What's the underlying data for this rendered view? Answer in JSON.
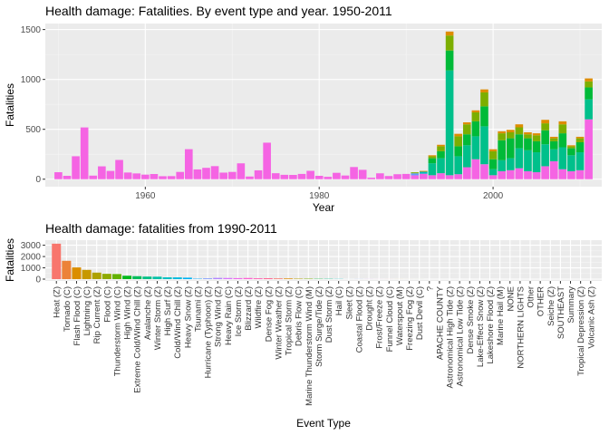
{
  "chart_data": [
    {
      "type": "bar",
      "stacked": true,
      "title": "Health damage: Fatalities. By event type and year. 1950-2011",
      "xlabel": "Year",
      "ylabel": "Fatalities",
      "xlim": [
        1948.5,
        2012.5
      ],
      "ylim": [
        -75,
        1560
      ],
      "x_ticks": [
        1960,
        1980,
        2000
      ],
      "y_ticks": [
        0,
        500,
        1000,
        1500
      ],
      "grid": true,
      "legend": "none",
      "series_colors": [
        "#F8766D",
        "#DE8C00",
        "#B79F00",
        "#7CAE00",
        "#00BA38",
        "#00C08B",
        "#00BFC4",
        "#00B4F0",
        "#619CFF",
        "#C77CFF",
        "#F564E3"
      ],
      "years": [
        1950,
        1951,
        1952,
        1953,
        1954,
        1955,
        1956,
        1957,
        1958,
        1959,
        1960,
        1961,
        1962,
        1963,
        1964,
        1965,
        1966,
        1967,
        1968,
        1969,
        1970,
        1971,
        1972,
        1973,
        1974,
        1975,
        1976,
        1977,
        1978,
        1979,
        1980,
        1981,
        1982,
        1983,
        1984,
        1985,
        1986,
        1987,
        1988,
        1989,
        1990,
        1991,
        1992,
        1993,
        1994,
        1995,
        1996,
        1997,
        1998,
        1999,
        2000,
        2001,
        2002,
        2003,
        2004,
        2005,
        2006,
        2007,
        2008,
        2009,
        2010,
        2011
      ],
      "stacks": [
        [
          [
            70,
            "#F564E3"
          ]
        ],
        [
          [
            34,
            "#F564E3"
          ]
        ],
        [
          [
            230,
            "#F564E3"
          ]
        ],
        [
          [
            519,
            "#F564E3"
          ]
        ],
        [
          [
            36,
            "#F564E3"
          ]
        ],
        [
          [
            129,
            "#F564E3"
          ]
        ],
        [
          [
            83,
            "#F564E3"
          ]
        ],
        [
          [
            193,
            "#F564E3"
          ]
        ],
        [
          [
            67,
            "#F564E3"
          ]
        ],
        [
          [
            58,
            "#F564E3"
          ]
        ],
        [
          [
            46,
            "#F564E3"
          ]
        ],
        [
          [
            52,
            "#F564E3"
          ]
        ],
        [
          [
            30,
            "#F564E3"
          ]
        ],
        [
          [
            31,
            "#F564E3"
          ]
        ],
        [
          [
            73,
            "#F564E3"
          ]
        ],
        [
          [
            301,
            "#F564E3"
          ]
        ],
        [
          [
            98,
            "#F564E3"
          ]
        ],
        [
          [
            114,
            "#F564E3"
          ]
        ],
        [
          [
            131,
            "#F564E3"
          ]
        ],
        [
          [
            66,
            "#F564E3"
          ]
        ],
        [
          [
            73,
            "#F564E3"
          ]
        ],
        [
          [
            159,
            "#F564E3"
          ]
        ],
        [
          [
            27,
            "#F564E3"
          ]
        ],
        [
          [
            89,
            "#F564E3"
          ]
        ],
        [
          [
            366,
            "#F564E3"
          ]
        ],
        [
          [
            60,
            "#F564E3"
          ]
        ],
        [
          [
            44,
            "#F564E3"
          ]
        ],
        [
          [
            43,
            "#F564E3"
          ]
        ],
        [
          [
            53,
            "#F564E3"
          ]
        ],
        [
          [
            84,
            "#F564E3"
          ]
        ],
        [
          [
            34,
            "#F564E3"
          ]
        ],
        [
          [
            24,
            "#F564E3"
          ]
        ],
        [
          [
            64,
            "#F564E3"
          ]
        ],
        [
          [
            37,
            "#F564E3"
          ]
        ],
        [
          [
            122,
            "#F564E3"
          ]
        ],
        [
          [
            94,
            "#F564E3"
          ]
        ],
        [
          [
            15,
            "#F564E3"
          ]
        ],
        [
          [
            59,
            "#F564E3"
          ]
        ],
        [
          [
            32,
            "#F564E3"
          ]
        ],
        [
          [
            50,
            "#F564E3"
          ]
        ],
        [
          [
            53,
            "#F564E3"
          ]
        ],
        [
          [
            39,
            "#F564E3"
          ],
          [
            20,
            "#619CFF"
          ],
          [
            10,
            "#7CAE00"
          ]
        ],
        [
          [
            55,
            "#F564E3"
          ],
          [
            20,
            "#00BFC4"
          ],
          [
            8,
            "#DE8C00"
          ]
        ],
        [
          [
            40,
            "#F564E3"
          ],
          [
            120,
            "#00C08B"
          ],
          [
            50,
            "#00BA38"
          ],
          [
            20,
            "#7CAE00"
          ],
          [
            10,
            "#DE8C00"
          ]
        ],
        [
          [
            60,
            "#F564E3"
          ],
          [
            150,
            "#00C08B"
          ],
          [
            70,
            "#00BA38"
          ],
          [
            50,
            "#7CAE00"
          ],
          [
            15,
            "#DE8C00"
          ]
        ],
        [
          [
            40,
            "#F564E3"
          ],
          [
            1050,
            "#00C08B"
          ],
          [
            200,
            "#00BA38"
          ],
          [
            150,
            "#7CAE00"
          ],
          [
            40,
            "#DE8C00"
          ]
        ],
        [
          [
            50,
            "#F564E3"
          ],
          [
            180,
            "#00C08B"
          ],
          [
            100,
            "#00BA38"
          ],
          [
            100,
            "#7CAE00"
          ],
          [
            25,
            "#DE8C00"
          ]
        ],
        [
          [
            120,
            "#F564E3"
          ],
          [
            220,
            "#00C08B"
          ],
          [
            110,
            "#00BA38"
          ],
          [
            100,
            "#7CAE00"
          ],
          [
            20,
            "#DE8C00"
          ]
        ],
        [
          [
            200,
            "#F564E3"
          ],
          [
            230,
            "#00C08B"
          ],
          [
            150,
            "#00BA38"
          ],
          [
            90,
            "#7CAE00"
          ],
          [
            20,
            "#DE8C00"
          ]
        ],
        [
          [
            150,
            "#F564E3"
          ],
          [
            380,
            "#00C08B"
          ],
          [
            200,
            "#00BA38"
          ],
          [
            140,
            "#7CAE00"
          ],
          [
            30,
            "#DE8C00"
          ]
        ],
        [
          [
            40,
            "#F564E3"
          ],
          [
            60,
            "#00C08B"
          ],
          [
            100,
            "#00BA38"
          ],
          [
            80,
            "#7CAE00"
          ],
          [
            20,
            "#DE8C00"
          ]
        ],
        [
          [
            80,
            "#F564E3"
          ],
          [
            110,
            "#00C08B"
          ],
          [
            200,
            "#00BA38"
          ],
          [
            70,
            "#7CAE00"
          ],
          [
            20,
            "#DE8C00"
          ]
        ],
        [
          [
            90,
            "#F564E3"
          ],
          [
            120,
            "#00C08B"
          ],
          [
            200,
            "#00BA38"
          ],
          [
            60,
            "#7CAE00"
          ],
          [
            25,
            "#DE8C00"
          ]
        ],
        [
          [
            110,
            "#F564E3"
          ],
          [
            200,
            "#00C08B"
          ],
          [
            140,
            "#00BA38"
          ],
          [
            70,
            "#7CAE00"
          ],
          [
            30,
            "#DE8C00"
          ]
        ],
        [
          [
            80,
            "#F564E3"
          ],
          [
            210,
            "#00C08B"
          ],
          [
            120,
            "#00BA38"
          ],
          [
            40,
            "#7CAE00"
          ],
          [
            20,
            "#DE8C00"
          ]
        ],
        [
          [
            70,
            "#F564E3"
          ],
          [
            200,
            "#00C08B"
          ],
          [
            110,
            "#00BA38"
          ],
          [
            60,
            "#7CAE00"
          ],
          [
            20,
            "#DE8C00"
          ]
        ],
        [
          [
            130,
            "#F564E3"
          ],
          [
            220,
            "#00C08B"
          ],
          [
            140,
            "#00BA38"
          ],
          [
            70,
            "#7CAE00"
          ],
          [
            35,
            "#DE8C00"
          ]
        ],
        [
          [
            180,
            "#F564E3"
          ],
          [
            120,
            "#00C08B"
          ],
          [
            80,
            "#00BA38"
          ],
          [
            30,
            "#7CAE00"
          ],
          [
            15,
            "#DE8C00"
          ]
        ],
        [
          [
            100,
            "#F564E3"
          ],
          [
            220,
            "#00C08B"
          ],
          [
            140,
            "#00BA38"
          ],
          [
            90,
            "#7CAE00"
          ],
          [
            30,
            "#DE8C00"
          ]
        ],
        [
          [
            80,
            "#F564E3"
          ],
          [
            160,
            "#00C08B"
          ],
          [
            70,
            "#00BA38"
          ],
          [
            20,
            "#7CAE00"
          ],
          [
            10,
            "#DE8C00"
          ]
        ],
        [
          [
            90,
            "#F564E3"
          ],
          [
            180,
            "#00C08B"
          ],
          [
            100,
            "#00BA38"
          ],
          [
            40,
            "#7CAE00"
          ],
          [
            15,
            "#DE8C00"
          ]
        ],
        [
          [
            600,
            "#F564E3"
          ],
          [
            200,
            "#00C08B"
          ],
          [
            120,
            "#00BA38"
          ],
          [
            60,
            "#7CAE00"
          ],
          [
            30,
            "#DE8C00"
          ]
        ]
      ]
    },
    {
      "type": "bar",
      "title": "Health damage: fatalities from 1990-2011",
      "xlabel": "Event Type",
      "ylabel": "Fatalities",
      "ylim": [
        -160,
        3450
      ],
      "y_ticks": [
        0,
        1000,
        2000,
        3000
      ],
      "grid": true,
      "legend": "none",
      "categories": [
        "Heat (Z)",
        "Tornado (C)",
        "Flash Flood (C)",
        "Lightning (C)",
        "Rip Current (Z)",
        "Flood (C)",
        "Thunderstorm Wind (C)",
        "High Wind (Z)",
        "Extreme Cold/Wind Chill (Z)",
        "Avalanche (Z)",
        "Winter Storm (Z)",
        "High Surf (Z)",
        "Cold/Wind Chill (Z)",
        "Heavy Snow (Z)",
        "Tsunami (Z)",
        "Hurricane (Typhoon) (Z)",
        "Strong Wind (Z)",
        "Heavy Rain (C)",
        "Ice Storm (Z)",
        "Blizzard (Z)",
        "Wildfire (Z)",
        "Dense Fog (Z)",
        "Winter Weather (Z)",
        "Tropical Storm (Z)",
        "Debris Flow (C)",
        "Marine Thunderstorm Wind (M)",
        "Storm Surge/Tide (Z)",
        "Dust Storm (Z)",
        "Hail (C)",
        "Sleet (Z)",
        "Coastal Flood (Z)",
        "Drought (Z)",
        "Frost/Freeze (Z)",
        "Funnel Cloud (C)",
        "Waterspout (M)",
        "Freezing Fog (Z)",
        "Dust Devil (C)",
        "?",
        "APACHE COUNTY",
        "Astronomical High Tide (Z)",
        "Astronomical Low Tide (Z)",
        "Dense Smoke (Z)",
        "Lake-Effect Snow (Z)",
        "Lakeshore Flood (Z)",
        "Marine Hail (M)",
        "NONE",
        "NORTHERN LIGHTS",
        "Other",
        "OTHER",
        "Seiche (Z)",
        "SOUTHEAST",
        "Summary",
        "Tropical Depression (Z)",
        "Volcanic Ash (Z)"
      ],
      "values": [
        3138,
        1621,
        1035,
        817,
        577,
        470,
        450,
        300,
        260,
        225,
        215,
        160,
        155,
        130,
        33,
        64,
        110,
        101,
        89,
        101,
        75,
        81,
        62,
        57,
        38,
        35,
        24,
        24,
        15,
        2,
        6,
        6,
        3,
        3,
        3,
        2,
        2,
        0,
        0,
        0,
        0,
        0,
        0,
        0,
        0,
        0,
        0,
        0,
        0,
        0,
        0,
        0,
        0,
        0
      ],
      "colors": [
        "#F8766D",
        "#EC8239",
        "#DB8E00",
        "#C79800",
        "#AEA200",
        "#8FAA00",
        "#64B200",
        "#00B81B",
        "#00BD5C",
        "#00C085",
        "#00C1A7",
        "#00BFC4",
        "#00BADE",
        "#00B2F3",
        "#00A6FF",
        "#7C96FF",
        "#B385FF",
        "#D874FD",
        "#EF67EB",
        "#FD61D3",
        "#FF61B6",
        "#FF6795",
        "#F8766D",
        "#DE8C00",
        "#B79F00",
        "#7CAE00",
        "#00BA38",
        "#00C08B",
        "#00BFC4",
        "#00B4F0",
        "#619CFF",
        "#C77CFF",
        "#F564E3",
        "#F8766D",
        "#DE8C00",
        "#B79F00",
        "#7CAE00",
        "#00BA38",
        "#00C08B",
        "#00BFC4",
        "#00B4F0",
        "#619CFF",
        "#C77CFF",
        "#F564E3",
        "#F8766D",
        "#DE8C00",
        "#B79F00",
        "#7CAE00",
        "#00BA38",
        "#00C08B",
        "#00BFC4",
        "#00B4F0",
        "#619CFF",
        "#C77CFF"
      ]
    }
  ]
}
